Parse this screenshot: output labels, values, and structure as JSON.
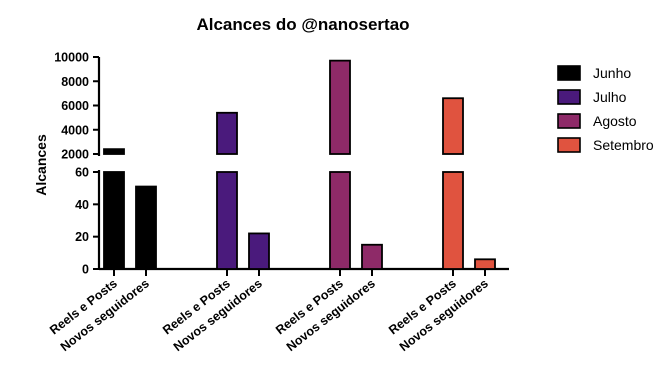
{
  "chart_data": {
    "type": "bar",
    "title": "Alcances do @nanosertao",
    "ylabel": "Alcances",
    "xlabel": "",
    "categories": [
      "Reels e Posts",
      "Novos seguidores"
    ],
    "series": [
      {
        "name": "Junho",
        "color": "#000000",
        "values": [
          2400,
          51
        ]
      },
      {
        "name": "Julho",
        "color": "#4a1a7c",
        "values": [
          5400,
          22
        ]
      },
      {
        "name": "Agosto",
        "color": "#8e2a68",
        "values": [
          9700,
          15
        ]
      },
      {
        "name": "Setembro",
        "color": "#e0533f",
        "values": [
          6600,
          6
        ]
      }
    ],
    "y_axis": {
      "broken": true,
      "lower_segment": {
        "range": [
          0,
          60
        ],
        "ticks": [
          "0",
          "20",
          "40",
          "60"
        ]
      },
      "upper_segment": {
        "range": [
          2000,
          10000
        ],
        "ticks": [
          "2000",
          "4000",
          "6000",
          "8000",
          "10000"
        ]
      }
    },
    "legend_position": "right",
    "grid": false
  }
}
